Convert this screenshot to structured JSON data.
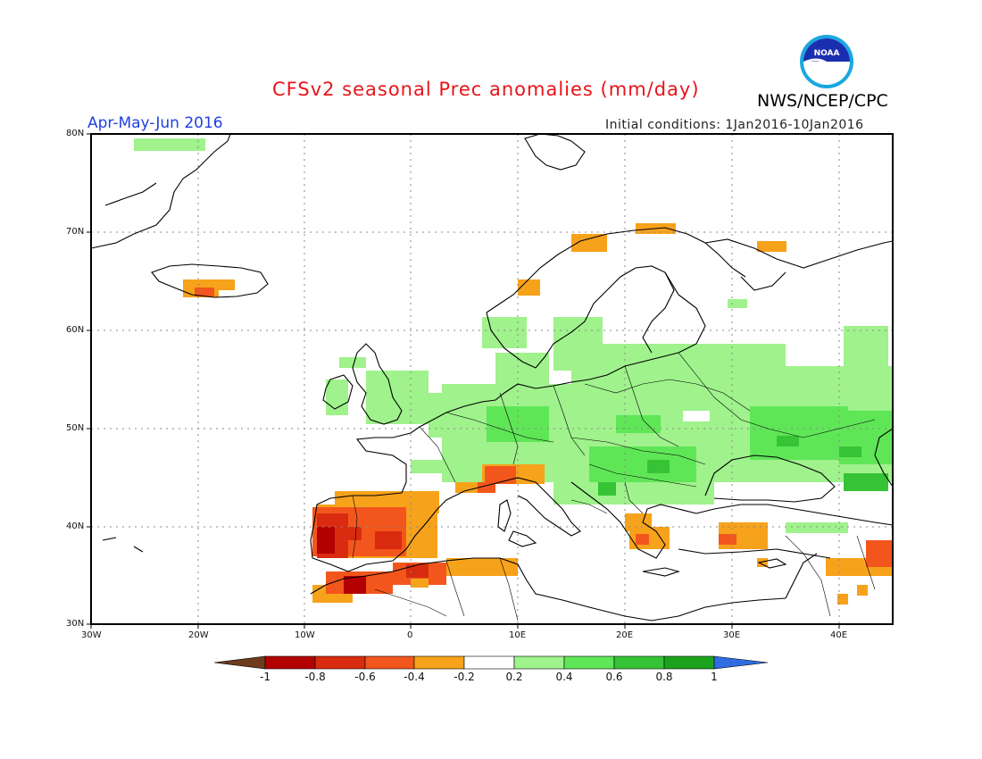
{
  "title": "CFSv2 seasonal Prec anomalies (mm/day)",
  "organization": "NWS/NCEP/CPC",
  "logo_text": "NOAA",
  "season": "Apr-May-Jun 2016",
  "initial_conditions": "Initial conditions: 1Jan2016-10Jan2016",
  "x_ticks": [
    "30W",
    "20W",
    "10W",
    "0",
    "10E",
    "20E",
    "30E",
    "40E"
  ],
  "y_ticks": [
    "80N",
    "70N",
    "60N",
    "50N",
    "40N",
    "30N"
  ],
  "colorbar": {
    "labels": [
      "-1",
      "-0.8",
      "-0.6",
      "-0.4",
      "-0.2",
      "0.2",
      "0.4",
      "0.6",
      "0.8",
      "1"
    ],
    "colors": [
      "#6e3b1f",
      "#b30000",
      "#d92b0f",
      "#f2561c",
      "#f7a21b",
      "#ffffff",
      "#9ff28c",
      "#5fe657",
      "#36c436",
      "#1da21d",
      "#2f6de0"
    ]
  },
  "chart_data": {
    "type": "heatmap",
    "region": "Europe / North Africa",
    "lon_range": [
      -30,
      45
    ],
    "lat_range": [
      30,
      80
    ],
    "variable": "Precipitation anomaly (mm/day)",
    "anomaly_regions": [
      {
        "area": "Iberian Peninsula",
        "anomaly_range": [
          -1.0,
          -0.4
        ]
      },
      {
        "area": "Northwest Africa",
        "anomaly_range": [
          -0.8,
          -0.4
        ]
      },
      {
        "area": "Northern Algeria / Tunisia",
        "anomaly_range": [
          -0.6,
          -0.2
        ]
      },
      {
        "area": "Southern France / NW Italy",
        "anomaly_range": [
          -0.6,
          -0.2
        ]
      },
      {
        "area": "Southern Iceland",
        "anomaly_range": [
          -0.6,
          -0.2
        ]
      },
      {
        "area": "Norwegian coast",
        "anomaly_range": [
          -0.4,
          -0.2
        ]
      },
      {
        "area": "Greece / Aegean",
        "anomaly_range": [
          -0.6,
          -0.2
        ]
      },
      {
        "area": "Southern Turkey / Levant",
        "anomaly_range": [
          -0.6,
          -0.2
        ]
      },
      {
        "area": "Central Europe / Germany / Poland",
        "anomaly_range": [
          0.2,
          0.6
        ]
      },
      {
        "area": "Ukraine / Black Sea region",
        "anomaly_range": [
          0.2,
          0.8
        ]
      },
      {
        "area": "Balkans",
        "anomaly_range": [
          0.2,
          0.6
        ]
      },
      {
        "area": "British Isles / North Sea",
        "anomaly_range": [
          0.2,
          0.4
        ]
      },
      {
        "area": "Western Russia",
        "anomaly_range": [
          0.2,
          0.6
        ]
      }
    ]
  }
}
